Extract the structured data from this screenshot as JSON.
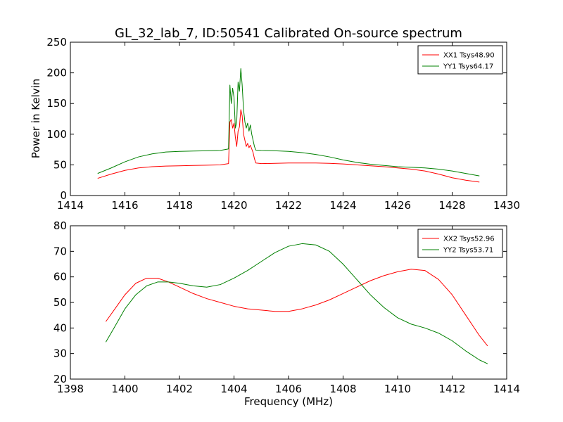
{
  "figure": {
    "title": "GL_32_lab_7, ID:50541 Calibrated On-source spectrum",
    "xlabel": "Frequency (MHz)",
    "ylabel": "Power in Kelvin"
  },
  "chart_data": [
    {
      "type": "line",
      "xlim": [
        1414,
        1430
      ],
      "ylim": [
        0,
        250
      ],
      "xticks": [
        1414,
        1416,
        1418,
        1420,
        1422,
        1424,
        1426,
        1428,
        1430
      ],
      "yticks": [
        0,
        50,
        100,
        150,
        200,
        250
      ],
      "ylabel": "Power in Kelvin",
      "xlabel": "",
      "legend": "top-right",
      "series": [
        {
          "name": "XX1 Tsys48.90",
          "color": "#ff0000",
          "x": [
            1415.0,
            1415.5,
            1416.0,
            1416.5,
            1417.0,
            1417.5,
            1418.0,
            1418.5,
            1419.0,
            1419.5,
            1419.8,
            1419.85,
            1419.9,
            1419.95,
            1420.0,
            1420.05,
            1420.1,
            1420.15,
            1420.2,
            1420.25,
            1420.3,
            1420.35,
            1420.4,
            1420.45,
            1420.5,
            1420.55,
            1420.6,
            1420.65,
            1420.7,
            1420.75,
            1420.8,
            1421.0,
            1421.5,
            1422.0,
            1422.5,
            1423.0,
            1423.5,
            1424.0,
            1424.5,
            1425.0,
            1425.5,
            1426.0,
            1426.5,
            1427.0,
            1427.5,
            1428.0,
            1428.5,
            1429.0
          ],
          "y": [
            28,
            35,
            41,
            45,
            47,
            48,
            48.5,
            49,
            49.5,
            50,
            52,
            120,
            124,
            110,
            118,
            95,
            80,
            105,
            112,
            140,
            130,
            100,
            90,
            80,
            85,
            78,
            82,
            76,
            70,
            60,
            53,
            52,
            52.5,
            53,
            53,
            53,
            52.5,
            51.5,
            50,
            48.5,
            47,
            45,
            43,
            40,
            35,
            29,
            25,
            22
          ]
        },
        {
          "name": "YY1 Tsys64.17",
          "color": "#008000",
          "x": [
            1415.0,
            1415.5,
            1416.0,
            1416.5,
            1417.0,
            1417.5,
            1418.0,
            1418.5,
            1419.0,
            1419.5,
            1419.8,
            1419.85,
            1419.9,
            1419.95,
            1420.0,
            1420.05,
            1420.1,
            1420.15,
            1420.2,
            1420.25,
            1420.3,
            1420.35,
            1420.4,
            1420.45,
            1420.5,
            1420.55,
            1420.6,
            1420.65,
            1420.7,
            1420.75,
            1420.8,
            1421.0,
            1421.5,
            1422.0,
            1422.5,
            1423.0,
            1423.5,
            1424.0,
            1424.5,
            1425.0,
            1425.5,
            1426.0,
            1426.5,
            1427.0,
            1427.5,
            1428.0,
            1428.5,
            1429.0
          ],
          "y": [
            36,
            45,
            55,
            63,
            68,
            71,
            72,
            72.5,
            73,
            73.5,
            76,
            180,
            150,
            175,
            160,
            110,
            120,
            185,
            170,
            207,
            180,
            140,
            120,
            110,
            118,
            105,
            115,
            100,
            90,
            80,
            74,
            73.5,
            73,
            72,
            70,
            67,
            63,
            58,
            54,
            51,
            49,
            47,
            46,
            45,
            43,
            40,
            36,
            32
          ]
        }
      ]
    },
    {
      "type": "line",
      "xlim": [
        1398,
        1414
      ],
      "ylim": [
        20,
        80
      ],
      "xticks": [
        1398,
        1400,
        1402,
        1404,
        1406,
        1408,
        1410,
        1412,
        1414
      ],
      "yticks": [
        20,
        30,
        40,
        50,
        60,
        70,
        80
      ],
      "ylabel": "",
      "xlabel": "Frequency (MHz)",
      "legend": "top-right",
      "series": [
        {
          "name": "XX2 Tsys52.96",
          "color": "#ff0000",
          "x": [
            1399.3,
            1399.6,
            1400.0,
            1400.4,
            1400.8,
            1401.2,
            1401.6,
            1402.0,
            1402.5,
            1403.0,
            1403.5,
            1404.0,
            1404.5,
            1405.0,
            1405.5,
            1406.0,
            1406.5,
            1407.0,
            1407.5,
            1408.0,
            1408.5,
            1409.0,
            1409.5,
            1410.0,
            1410.5,
            1411.0,
            1411.5,
            1412.0,
            1412.5,
            1413.0,
            1413.3
          ],
          "y": [
            42.5,
            47,
            53,
            57.5,
            59.5,
            59.5,
            58,
            56,
            53.5,
            51.5,
            50,
            48.5,
            47.5,
            47,
            46.5,
            46.5,
            47.5,
            49,
            51,
            53.5,
            56,
            58.5,
            60.5,
            62,
            63,
            62.5,
            59,
            53,
            45,
            37,
            33
          ]
        },
        {
          "name": "YY2 Tsys53.71",
          "color": "#008000",
          "x": [
            1399.3,
            1399.6,
            1400.0,
            1400.4,
            1400.8,
            1401.2,
            1401.6,
            1402.0,
            1402.5,
            1403.0,
            1403.5,
            1404.0,
            1404.5,
            1405.0,
            1405.5,
            1406.0,
            1406.5,
            1407.0,
            1407.5,
            1408.0,
            1408.5,
            1409.0,
            1409.5,
            1410.0,
            1410.5,
            1411.0,
            1411.5,
            1412.0,
            1412.5,
            1413.0,
            1413.3
          ],
          "y": [
            34.5,
            40,
            47.5,
            53,
            56.5,
            58,
            58,
            57.5,
            56.5,
            56,
            57,
            59.5,
            62.5,
            66,
            69.5,
            72,
            73,
            72.5,
            70,
            65,
            59,
            53,
            48,
            44,
            41.5,
            40,
            38,
            35,
            31,
            27.5,
            26
          ]
        }
      ]
    }
  ]
}
